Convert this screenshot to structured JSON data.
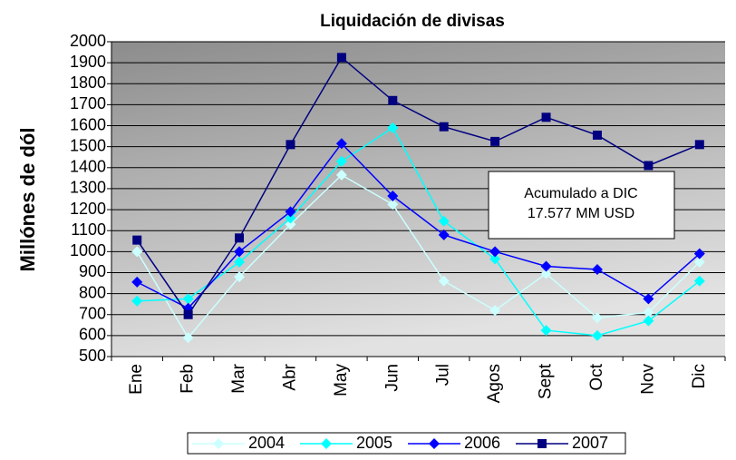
{
  "chart_data": {
    "type": "line",
    "title": "Liquidación de divisas",
    "ylabel": "Millónes de dól",
    "categories": [
      "Ene",
      "Feb",
      "Mar",
      "Abr",
      "May",
      "Jun",
      "Jul",
      "Agos",
      "Sept",
      "Oct",
      "Nov",
      "Dic"
    ],
    "series": [
      {
        "name": "2004",
        "color": "#ccffff",
        "marker": "diamond",
        "values": [
          1000,
          590,
          880,
          1130,
          1365,
          1225,
          860,
          720,
          895,
          685,
          710,
          950
        ]
      },
      {
        "name": "2005",
        "color": "#00ffff",
        "marker": "diamond",
        "values": [
          765,
          775,
          950,
          1160,
          1430,
          1590,
          1145,
          965,
          625,
          600,
          670,
          860
        ]
      },
      {
        "name": "2006",
        "color": "#0000ff",
        "marker": "diamond",
        "values": [
          855,
          730,
          1000,
          1190,
          1515,
          1265,
          1080,
          1000,
          930,
          915,
          775,
          990
        ]
      },
      {
        "name": "2007",
        "color": "#000080",
        "marker": "square",
        "values": [
          1055,
          700,
          1065,
          1510,
          1925,
          1720,
          1595,
          1525,
          1640,
          1555,
          1410,
          1510
        ]
      }
    ],
    "ylim": [
      500,
      2000
    ],
    "yticks": [
      500,
      600,
      700,
      800,
      900,
      1000,
      1100,
      1200,
      1300,
      1400,
      1500,
      1600,
      1700,
      1800,
      1900,
      2000
    ],
    "grid": true,
    "legend": "bottom",
    "annotation": [
      "Acumulado a DIC",
      "17.577  MM USD"
    ]
  }
}
